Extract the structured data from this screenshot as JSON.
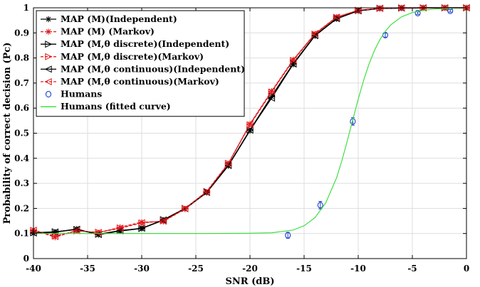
{
  "chart_data": {
    "type": "line",
    "xlabel": "SNR (dB)",
    "ylabel": "Probability of correct decision (Pc)",
    "xlim": [
      -40,
      0
    ],
    "ylim": [
      0,
      1
    ],
    "xticks": [
      -40,
      -35,
      -30,
      -25,
      -20,
      -15,
      -10,
      -5,
      0
    ],
    "yticks": [
      0,
      0.1,
      0.2,
      0.3,
      0.4,
      0.5,
      0.6,
      0.7,
      0.8,
      0.9,
      1
    ],
    "grid": true,
    "legend_position": "top-left",
    "series": [
      {
        "name": "MAP (M)(Independent)",
        "color": "#000000",
        "line": "solid",
        "marker": "asterisk",
        "x": [
          -40,
          -38,
          -36,
          -34,
          -32,
          -30,
          -28,
          -26,
          -24,
          -22,
          -20,
          -18,
          -16,
          -14,
          -12,
          -10,
          -8,
          -6,
          -4,
          -2,
          0
        ],
        "y": [
          0.1,
          0.105,
          0.118,
          0.095,
          0.11,
          0.12,
          0.153,
          0.198,
          0.263,
          0.37,
          0.51,
          0.645,
          0.775,
          0.888,
          0.956,
          0.988,
          0.997,
          0.999,
          1.0,
          1.0,
          1.0
        ]
      },
      {
        "name": "MAP (M) (Markov)",
        "color": "#e41a1c",
        "line": "dashed",
        "marker": "asterisk",
        "x": [
          -40,
          -38,
          -36,
          -34,
          -32,
          -30,
          -28,
          -26,
          -24,
          -22,
          -20,
          -18,
          -16,
          -14,
          -12,
          -10,
          -8,
          -6,
          -4,
          -2,
          0
        ],
        "y": [
          0.115,
          0.085,
          0.112,
          0.103,
          0.125,
          0.145,
          0.148,
          0.198,
          0.265,
          0.378,
          0.537,
          0.668,
          0.793,
          0.896,
          0.963,
          0.99,
          0.998,
          1.0,
          1.0,
          1.0,
          1.0
        ]
      },
      {
        "name": "MAP (M,θ discrete)(Independent)",
        "color": "#000000",
        "line": "solid",
        "marker": "triangle-right",
        "x": [
          -40,
          -38,
          -36,
          -34,
          -32,
          -30,
          -28,
          -26,
          -24,
          -22,
          -20,
          -18,
          -16,
          -14,
          -12,
          -10,
          -8,
          -6,
          -4,
          -2,
          0
        ],
        "y": [
          0.103,
          0.107,
          0.116,
          0.097,
          0.112,
          0.12,
          0.155,
          0.2,
          0.265,
          0.372,
          0.513,
          0.648,
          0.778,
          0.89,
          0.957,
          0.989,
          0.998,
          0.999,
          1.0,
          1.0,
          1.0
        ]
      },
      {
        "name": "MAP (M,θ discrete)(Markov)",
        "color": "#e41a1c",
        "line": "dashed",
        "marker": "triangle-right",
        "x": [
          -40,
          -38,
          -36,
          -34,
          -32,
          -30,
          -28,
          -26,
          -24,
          -22,
          -20,
          -18,
          -16,
          -14,
          -12,
          -10,
          -8,
          -6,
          -4,
          -2,
          0
        ],
        "y": [
          0.112,
          0.09,
          0.11,
          0.105,
          0.122,
          0.142,
          0.15,
          0.2,
          0.268,
          0.38,
          0.533,
          0.664,
          0.79,
          0.895,
          0.962,
          0.99,
          0.998,
          1.0,
          1.0,
          1.0,
          1.0
        ]
      },
      {
        "name": "MAP (M,θ continuous)(Independent)",
        "color": "#000000",
        "line": "solid",
        "marker": "triangle-left",
        "x": [
          -40,
          -38,
          -36,
          -34,
          -32,
          -30,
          -28,
          -26,
          -24,
          -22,
          -20,
          -18,
          -16,
          -14,
          -12,
          -10,
          -8,
          -6,
          -4,
          -2,
          0
        ],
        "y": [
          0.102,
          0.106,
          0.117,
          0.096,
          0.111,
          0.121,
          0.154,
          0.199,
          0.264,
          0.371,
          0.512,
          0.64,
          0.776,
          0.889,
          0.957,
          0.988,
          0.998,
          0.999,
          1.0,
          1.0,
          1.0
        ]
      },
      {
        "name": "MAP (M,θ continuous)(Markov)",
        "color": "#e41a1c",
        "line": "dashed",
        "marker": "triangle-left",
        "x": [
          -40,
          -38,
          -36,
          -34,
          -32,
          -30,
          -28,
          -26,
          -24,
          -22,
          -20,
          -18,
          -16,
          -14,
          -12,
          -10,
          -8,
          -6,
          -4,
          -2,
          0
        ],
        "y": [
          0.113,
          0.088,
          0.111,
          0.104,
          0.121,
          0.143,
          0.149,
          0.199,
          0.266,
          0.379,
          0.535,
          0.666,
          0.792,
          0.897,
          0.963,
          0.99,
          0.998,
          1.0,
          1.0,
          1.0,
          1.0
        ]
      },
      {
        "name": "Humans",
        "color": "#1f3fd1",
        "line": "none",
        "marker": "circle",
        "x": [
          -16.5,
          -13.5,
          -10.5,
          -7.5,
          -4.5,
          -1.5
        ],
        "y": [
          0.093,
          0.213,
          0.547,
          0.891,
          0.979,
          0.988
        ],
        "err": [
          0.012,
          0.015,
          0.015,
          0.008,
          0.005,
          0.005
        ]
      },
      {
        "name": "Humans (fitted curve)",
        "color": "#33dd33",
        "line": "solid",
        "marker": "none",
        "x": [
          -40,
          -30,
          -24,
          -20,
          -18,
          -16,
          -15,
          -14,
          -13,
          -12,
          -11.5,
          -11,
          -10.5,
          -10,
          -9.5,
          -9,
          -8.5,
          -8,
          -7.5,
          -7,
          -6,
          -5,
          -4,
          -3,
          -2,
          -1,
          0
        ],
        "y": [
          0.1,
          0.1,
          0.1,
          0.101,
          0.103,
          0.114,
          0.131,
          0.163,
          0.222,
          0.322,
          0.392,
          0.471,
          0.554,
          0.636,
          0.711,
          0.776,
          0.83,
          0.873,
          0.906,
          0.932,
          0.964,
          0.981,
          0.99,
          0.995,
          0.997,
          0.999,
          0.999
        ]
      }
    ]
  }
}
